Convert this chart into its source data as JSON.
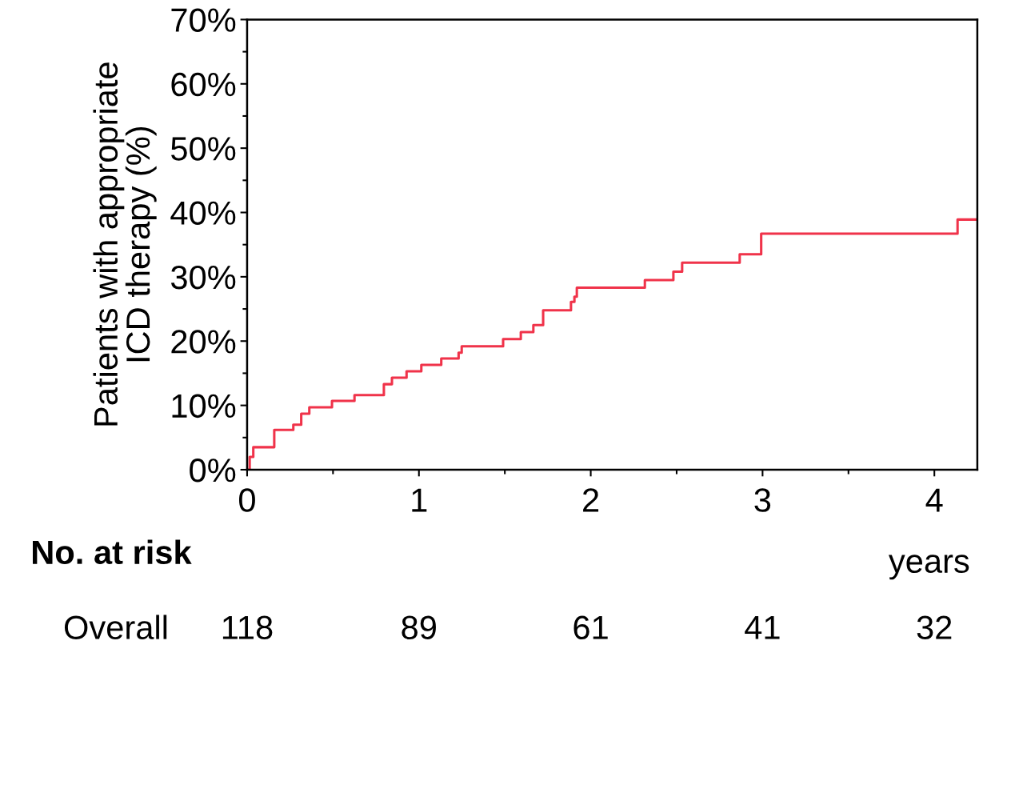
{
  "chart_data": {
    "type": "step",
    "ylabel": "Patients with appropriate\nICD therapy (%)",
    "xlabel": "years",
    "x": [
      0,
      0.015,
      0.036,
      0.158,
      0.269,
      0.315,
      0.362,
      0.494,
      0.625,
      0.796,
      0.843,
      0.928,
      1.014,
      1.13,
      1.231,
      1.249,
      1.49,
      1.593,
      1.666,
      1.723,
      1.885,
      1.905,
      1.919,
      2.315,
      2.481,
      2.532,
      2.867,
      2.992,
      4.135,
      4.25
    ],
    "series": [
      {
        "color": "#f0334a",
        "values": [
          0,
          2.0,
          3.5,
          6.2,
          7.0,
          8.7,
          9.7,
          10.7,
          11.6,
          13.3,
          14.3,
          15.3,
          16.3,
          17.3,
          18.2,
          19.2,
          20.3,
          21.4,
          22.5,
          24.8,
          26.1,
          26.9,
          28.3,
          29.5,
          30.8,
          32.2,
          33.5,
          36.7,
          38.9,
          38.9
        ]
      }
    ],
    "xlim": [
      0,
      4.25
    ],
    "ylim": [
      0,
      70
    ],
    "xticks": [
      0,
      {
        "value": 0.5,
        "label": null
      },
      1,
      {
        "value": 1.5,
        "label": null
      },
      2,
      {
        "value": 2.5,
        "label": null
      },
      3,
      {
        "value": 3.5,
        "label": null
      },
      4
    ],
    "yticks": [
      {
        "value": 0,
        "label": "0%"
      },
      {
        "value": 5,
        "label": null
      },
      {
        "value": 10,
        "label": "10%"
      },
      {
        "value": 15,
        "label": null
      },
      {
        "value": 20,
        "label": "20%"
      },
      {
        "value": 25,
        "label": null
      },
      {
        "value": 30,
        "label": "30%"
      },
      {
        "value": 35,
        "label": null
      },
      {
        "value": 40,
        "label": "40%"
      },
      {
        "value": 45,
        "label": null
      },
      {
        "value": 50,
        "label": "50%"
      },
      {
        "value": 55,
        "label": null
      },
      {
        "value": 60,
        "label": "60%"
      },
      {
        "value": 65,
        "label": null
      },
      {
        "value": 70,
        "label": "70%"
      }
    ],
    "grid": false,
    "legend": false,
    "annotations": [
      "No. at risk",
      "Overall",
      "118",
      "89",
      "61",
      "41",
      "32"
    ]
  }
}
